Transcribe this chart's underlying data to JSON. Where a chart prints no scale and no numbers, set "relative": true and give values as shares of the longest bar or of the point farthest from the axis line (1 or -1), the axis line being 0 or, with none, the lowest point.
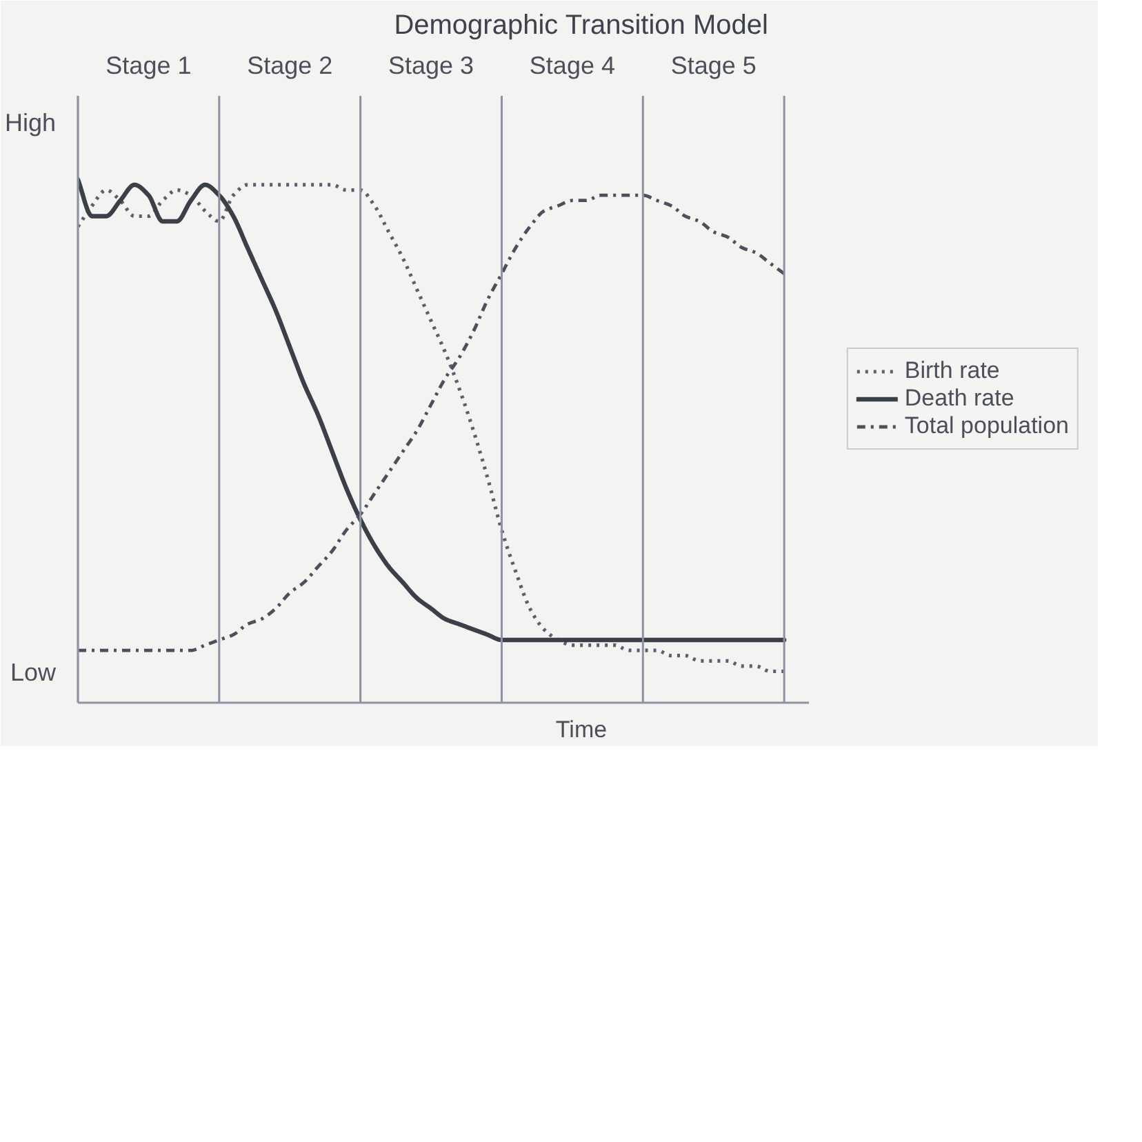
{
  "chart_data": {
    "type": "line",
    "title": "Demographic Transition Model",
    "xlabel": "Time",
    "relative": true,
    "categories": [
      null,
      null,
      null,
      null,
      null,
      "Stage 1",
      null,
      null,
      null,
      null,
      null,
      null,
      null,
      null,
      null,
      "Stage 2",
      null,
      null,
      null,
      null,
      null,
      null,
      null,
      null,
      null,
      "Stage 3",
      null,
      null,
      null,
      null,
      null,
      null,
      null,
      null,
      null,
      "Stage 4",
      null,
      null,
      null,
      null,
      null,
      null,
      null,
      null,
      null,
      "Stage 5",
      null,
      null,
      null,
      null,
      null
    ],
    "legend": "right",
    "annotations": [
      "High",
      "Low"
    ],
    "series": [
      {
        "name": "Birth rate",
        "color": "#5a5f6b",
        "line_style": "dotted",
        "values": [
          0.91,
          0.95,
          0.98,
          0.96,
          0.93,
          0.93,
          0.96,
          0.98,
          0.97,
          0.94,
          0.92,
          0.97,
          0.99,
          0.99,
          0.99,
          0.99,
          0.99,
          0.99,
          0.99,
          0.98,
          0.98,
          0.95,
          0.9,
          0.85,
          0.79,
          0.73,
          0.67,
          0.6,
          0.52,
          0.43,
          0.33,
          0.25,
          0.18,
          0.14,
          0.12,
          0.11,
          0.11,
          0.11,
          0.11,
          0.1,
          0.1,
          0.1,
          0.09,
          0.09,
          0.08,
          0.08,
          0.08,
          0.07,
          0.07,
          0.06,
          0.06
        ]
      },
      {
        "name": "Death rate",
        "color": "#3b3f48",
        "line_style": "solid",
        "values": [
          1.0,
          0.93,
          0.93,
          0.96,
          0.99,
          0.97,
          0.92,
          0.92,
          0.96,
          0.99,
          0.97,
          0.93,
          0.87,
          0.81,
          0.75,
          0.68,
          0.61,
          0.55,
          0.48,
          0.41,
          0.35,
          0.3,
          0.26,
          0.23,
          0.2,
          0.18,
          0.16,
          0.15,
          0.14,
          0.13,
          0.12,
          0.12,
          0.12,
          0.12,
          0.12,
          0.12,
          0.12,
          0.12,
          0.12,
          0.12,
          0.12,
          0.12,
          0.12,
          0.12,
          0.12,
          0.12,
          0.12,
          0.12,
          0.12,
          0.12,
          0.12
        ]
      },
      {
        "name": "Total population",
        "color": "#4b505c",
        "line_style": "dashdot",
        "values": [
          0.1,
          0.1,
          0.1,
          0.1,
          0.1,
          0.1,
          0.1,
          0.1,
          0.1,
          0.11,
          0.12,
          0.13,
          0.15,
          0.16,
          0.18,
          0.21,
          0.23,
          0.26,
          0.29,
          0.33,
          0.36,
          0.4,
          0.44,
          0.48,
          0.52,
          0.57,
          0.62,
          0.66,
          0.71,
          0.77,
          0.82,
          0.87,
          0.91,
          0.94,
          0.95,
          0.96,
          0.96,
          0.97,
          0.97,
          0.97,
          0.97,
          0.96,
          0.95,
          0.93,
          0.92,
          0.9,
          0.89,
          0.87,
          0.86,
          0.84,
          0.82
        ]
      }
    ]
  }
}
